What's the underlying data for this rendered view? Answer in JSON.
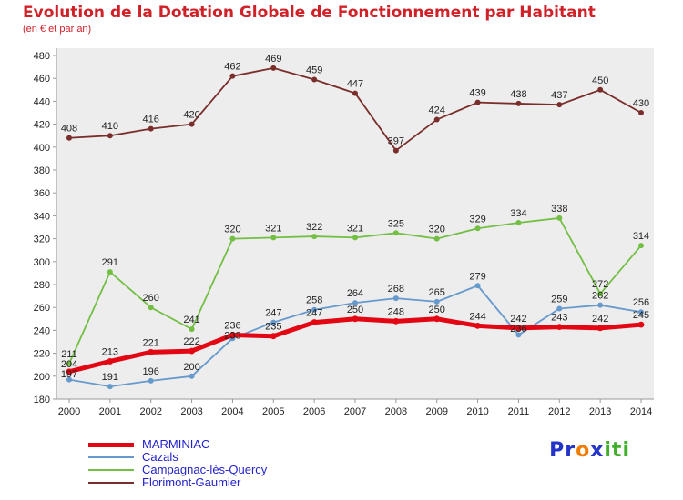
{
  "header": {
    "title": "Evolution de la Dotation Globale de Fonctionnement par Habitant",
    "subtitle": "(en € et par an)",
    "color": "#d02028"
  },
  "chart_data": {
    "type": "line",
    "x": [
      2000,
      2001,
      2002,
      2003,
      2004,
      2005,
      2006,
      2007,
      2008,
      2009,
      2010,
      2011,
      2012,
      2013,
      2014
    ],
    "ylim": [
      180,
      480
    ],
    "ytick_step": 20,
    "grid": false,
    "legend_position": "bottom-left",
    "panel_color": "#ededed",
    "axis_color": "#999999",
    "label_color": "#222222",
    "series": [
      {
        "name": "MARMINIAC",
        "color": "#e30613",
        "width": 5,
        "values": [
          204,
          213,
          221,
          222,
          236,
          235,
          247,
          250,
          248,
          250,
          244,
          242,
          243,
          242,
          245
        ]
      },
      {
        "name": "Cazals",
        "color": "#6699cc",
        "width": 1.8,
        "values": [
          197,
          191,
          196,
          200,
          233,
          247,
          258,
          264,
          268,
          265,
          279,
          236,
          259,
          262,
          256
        ]
      },
      {
        "name": "Campagnac-lès-Quercy",
        "color": "#72bf44",
        "width": 1.8,
        "values": [
          211,
          291,
          260,
          241,
          320,
          321,
          322,
          321,
          325,
          320,
          329,
          334,
          338,
          272,
          314
        ]
      },
      {
        "name": "Florimont-Gaumier",
        "color": "#7a2e2b",
        "width": 1.8,
        "values": [
          408,
          410,
          416,
          420,
          462,
          469,
          459,
          447,
          397,
          424,
          439,
          438,
          437,
          450,
          430
        ]
      }
    ]
  },
  "legend": {
    "text_color": "#2222cc"
  },
  "logo": {
    "parts": [
      {
        "text": "Pr",
        "color": "#2433c8"
      },
      {
        "text": "o",
        "color": "#f07d00"
      },
      {
        "text": "x",
        "color": "#2433c8"
      },
      {
        "text": "iti",
        "color": "#3fae29"
      }
    ]
  }
}
